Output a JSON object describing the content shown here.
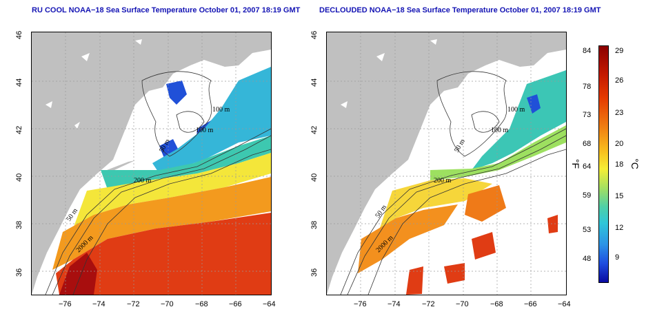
{
  "left_panel": {
    "title": "RU COOL NOAA−18 Sea Surface Temperature October 01, 2007 18:19 GMT",
    "contour_labels": [
      "100 m",
      "100 m",
      "50 m",
      "200 m",
      "50 m",
      "2000 m"
    ]
  },
  "right_panel": {
    "title": "DECLOUDED NOAA−18 Sea Surface Temperature October 01, 2007 18:19 GMT",
    "contour_labels": [
      "100 m",
      "100 m",
      "50 m",
      "200 m",
      "50 m",
      "2000 m"
    ]
  },
  "x_ticks": [
    "−76",
    "−74",
    "−72",
    "−70",
    "−68",
    "−66",
    "−64"
  ],
  "y_ticks": [
    "36",
    "38",
    "40",
    "42",
    "44",
    "46"
  ],
  "colorbar": {
    "fahrenheit_ticks": [
      "84",
      "78",
      "73",
      "68",
      "64",
      "59",
      "53",
      "48"
    ],
    "celsius_ticks": [
      "29",
      "26",
      "23",
      "20",
      "18",
      "15",
      "12",
      "9"
    ],
    "fahrenheit_unit": "°F",
    "celsius_unit": "°C"
  }
}
